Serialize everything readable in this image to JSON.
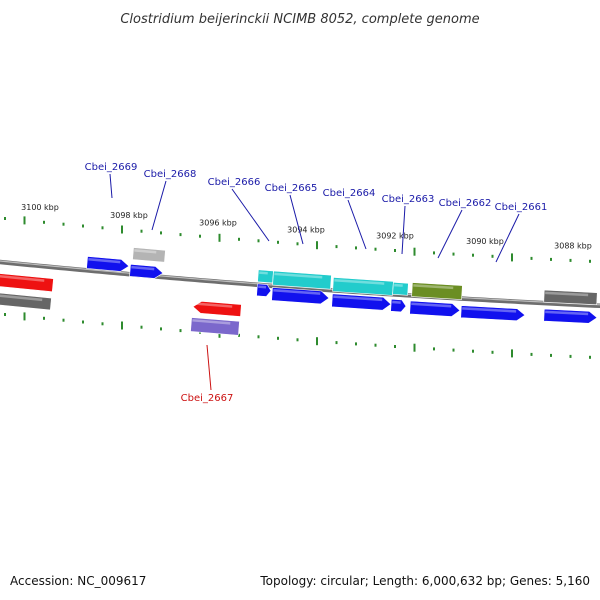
{
  "title": "Clostridium beijerinckii NCIMB 8052, complete genome",
  "footer": {
    "accession": "Accession: NC_009617",
    "topology": "Topology: circular; Length: 6,000,632 bp; Genes: 5,160"
  },
  "colors": {
    "backbone": "#8a8a8a",
    "tick": "#2e8b2e",
    "label_blue": "#1a1aa8",
    "label_red": "#cc1111",
    "blue": "#1111ee",
    "cyan": "#22cccc",
    "red": "#ee1111",
    "gray": "#666666",
    "lightgray": "#b4b4b4",
    "olive": "#6b8e23",
    "lavender": "#7b68cc"
  },
  "chart_data": {
    "type": "genome-map",
    "scale_labels": [
      {
        "kbp": 3100,
        "text": "3100 kbp"
      },
      {
        "kbp": 3098,
        "text": "3098 kbp"
      },
      {
        "kbp": 3096,
        "text": "3096 kbp"
      },
      {
        "kbp": 3094,
        "text": "3094 kbp"
      },
      {
        "kbp": 3092,
        "text": "3092 kbp"
      },
      {
        "kbp": 3090,
        "text": "3090 kbp"
      },
      {
        "kbp": 3088,
        "text": "3088 kbp"
      }
    ],
    "labeled_genes": [
      {
        "name": "Cbei_2669",
        "color": "blue"
      },
      {
        "name": "Cbei_2668",
        "color": "blue"
      },
      {
        "name": "Cbei_2667",
        "color": "red"
      },
      {
        "name": "Cbei_2666",
        "color": "blue"
      },
      {
        "name": "Cbei_2665",
        "color": "blue"
      },
      {
        "name": "Cbei_2664",
        "color": "blue"
      },
      {
        "name": "Cbei_2663",
        "color": "blue"
      },
      {
        "name": "Cbei_2662",
        "color": "blue"
      },
      {
        "name": "Cbei_2661",
        "color": "blue"
      }
    ]
  }
}
